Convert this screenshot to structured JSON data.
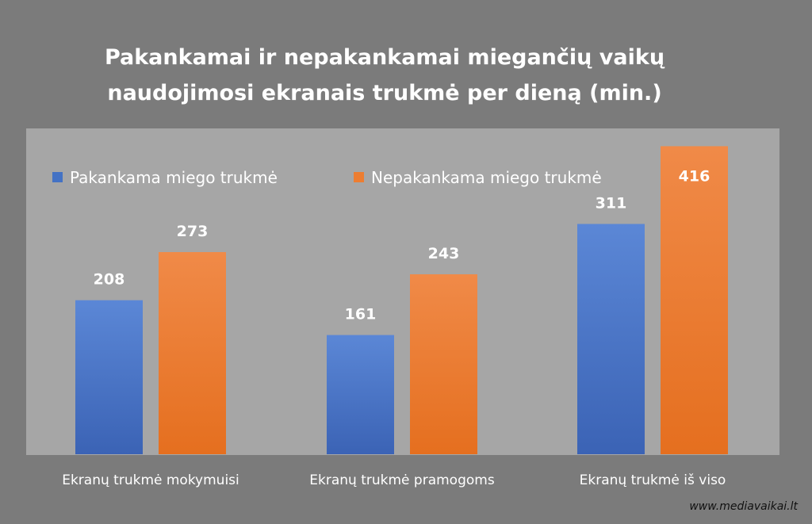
{
  "title_lines": [
    "Pakankamai ir nepakankamai miegančių vaikų",
    "naudojimosi ekranais trukmė per dieną (min.)"
  ],
  "watermark": "www.mediavaikai.lt",
  "colors": {
    "page_background": "#7b7b7b",
    "plot_background": "#a6a6a6",
    "series_1": "#4472c4",
    "series_2": "#ed7d31",
    "text": "#ffffff"
  },
  "chart_data": {
    "type": "bar",
    "title": "Pakankamai ir nepakankamai miegančių vaikų naudojimosi ekranais trukmė per dieną (min.)",
    "categories": [
      "Ekranų trukmė mokymuisi",
      "Ekranų trukmė pramogoms",
      "Ekranų trukmė iš viso"
    ],
    "series": [
      {
        "name": "Pakankama miego trukmė",
        "values": [
          208,
          161,
          311
        ]
      },
      {
        "name": "Nepakankama miego trukmė",
        "values": [
          273,
          243,
          416
        ]
      }
    ],
    "xlabel": "",
    "ylabel": "",
    "ylim": [
      0,
      440
    ],
    "grid": false,
    "legend_position": "top-left",
    "data_labels": true
  }
}
